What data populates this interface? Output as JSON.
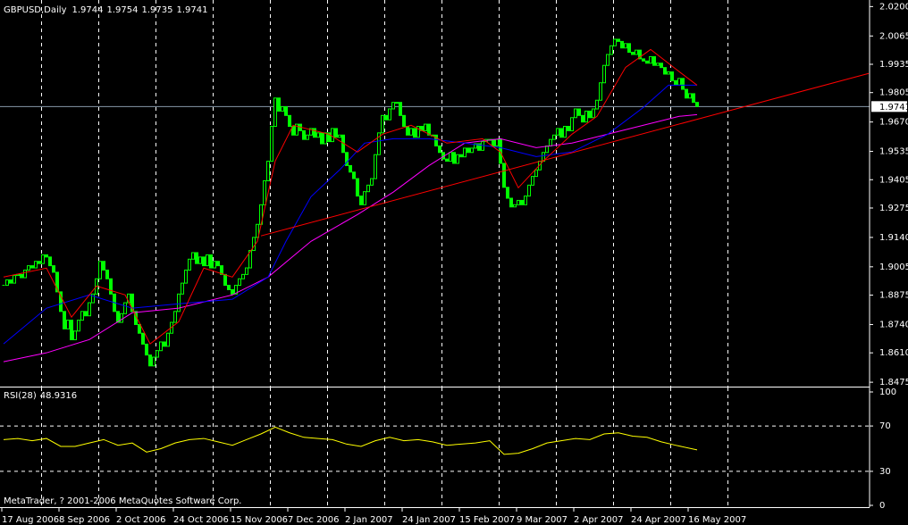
{
  "header": {
    "symbol": "GBPUSD,Daily",
    "ohlc": [
      1.9744,
      1.9754,
      1.9735,
      1.9741
    ]
  },
  "footer": "MetaTrader, ? 2001-2006 MetaQuotes Software Corp.",
  "chart_data": [
    {
      "type": "candlestick",
      "close": [
        1.892,
        1.8945,
        1.893,
        1.8965,
        1.897,
        1.8955,
        1.899,
        1.901,
        1.9,
        1.903,
        1.902,
        1.906,
        1.905,
        1.901,
        1.898,
        1.889,
        1.88,
        1.872,
        1.876,
        1.867,
        1.871,
        1.876,
        1.88,
        1.878,
        1.884,
        1.888,
        1.895,
        1.903,
        1.899,
        1.895,
        1.888,
        1.88,
        1.875,
        1.879,
        1.884,
        1.888,
        1.88,
        1.874,
        1.87,
        1.865,
        1.86,
        1.855,
        1.859,
        1.862,
        1.866,
        1.864,
        1.87,
        1.875,
        1.88,
        1.888,
        1.893,
        1.899,
        1.904,
        1.907,
        1.902,
        1.905,
        1.901,
        1.906,
        1.9,
        1.903,
        1.901,
        1.897,
        1.892,
        1.89,
        1.888,
        1.892,
        1.895,
        1.897,
        1.9,
        1.908,
        1.914,
        1.92,
        1.929,
        1.94,
        1.949,
        1.965,
        1.978,
        1.972,
        1.974,
        1.97,
        1.965,
        1.961,
        1.966,
        1.963,
        1.959,
        1.961,
        1.964,
        1.96,
        1.962,
        1.957,
        1.962,
        1.958,
        1.964,
        1.96,
        1.961,
        1.953,
        1.947,
        1.944,
        1.941,
        1.933,
        1.929,
        1.935,
        1.938,
        1.941,
        1.952,
        1.962,
        1.97,
        1.968,
        1.973,
        1.976,
        1.976,
        1.97,
        1.965,
        1.961,
        1.964,
        1.96,
        1.965,
        1.963,
        1.966,
        1.961,
        1.961,
        1.956,
        1.953,
        1.95,
        1.949,
        1.953,
        1.948,
        1.952,
        1.951,
        1.955,
        1.953,
        1.955,
        1.957,
        1.954,
        1.958,
        1.959,
        1.959,
        1.956,
        1.959,
        1.948,
        1.937,
        1.932,
        1.928,
        1.929,
        1.931,
        1.929,
        1.933,
        1.938,
        1.942,
        1.945,
        1.949,
        1.953,
        1.956,
        1.959,
        1.961,
        1.964,
        1.96,
        1.965,
        1.963,
        1.969,
        1.973,
        1.97,
        1.967,
        1.972,
        1.969,
        1.973,
        1.977,
        1.985,
        1.993,
        1.998,
        2.002,
        2.005,
        2.004,
        2.001,
        2.003,
        1.999,
        1.998,
        2.0,
        1.996,
        1.995,
        1.994,
        1.997,
        1.993,
        1.994,
        1.992,
        1.989,
        1.99,
        1.986,
        1.984,
        1.987,
        1.982,
        1.978,
        1.98,
        1.976,
        1.9741
      ],
      "color": "#00ff00",
      "ylim": [
        1.8459,
        2.0222
      ],
      "yticks": [
        {
          "value": 2.02,
          "label": "2.0200"
        },
        2.0065,
        1.9935,
        1.9805,
        {
          "value": 1.967,
          "label": "1.9670"
        },
        1.9535,
        1.9405,
        1.9275,
        {
          "value": 1.914,
          "label": "1.9140"
        },
        1.9005,
        1.8875,
        {
          "value": 1.874,
          "label": "1.8740"
        },
        {
          "value": 1.861,
          "label": "1.8610"
        },
        1.8475
      ],
      "xticks": [
        {
          "value": 0,
          "label": "17 Aug 2006"
        },
        {
          "value": 16,
          "label": "8 Sep 2006"
        },
        {
          "value": 32,
          "label": "2 Oct 2006"
        },
        {
          "value": 48,
          "label": "24 Oct 2006"
        },
        {
          "value": 64,
          "label": "15 Nov 2006"
        },
        {
          "value": 80,
          "label": "7 Dec 2006"
        },
        {
          "value": 96,
          "label": "2 Jan 2007"
        },
        {
          "value": 112,
          "label": "24 Jan 2007"
        },
        {
          "value": 128,
          "label": "15 Feb 2007"
        },
        {
          "value": 144,
          "label": "9 Mar 2007"
        },
        {
          "value": 160,
          "label": "2 Apr 2007"
        },
        {
          "value": 176,
          "label": "24 Apr 2007"
        },
        {
          "value": 192,
          "label": "16 May 2007"
        }
      ],
      "grid": "vertical",
      "current_price": 1.9741,
      "series": [
        {
          "color": "#ff00ff",
          "x": [
            0,
            12,
            24,
            36,
            49,
            64,
            74,
            86,
            99,
            109,
            119,
            129,
            139,
            149,
            159,
            169,
            179,
            189,
            194
          ],
          "values": [
            1.8569,
            1.861,
            1.8671,
            1.8794,
            1.8815,
            1.8876,
            1.8958,
            1.9122,
            1.9245,
            1.9348,
            1.947,
            1.9573,
            1.9593,
            1.9552,
            1.9573,
            1.9614,
            1.9655,
            1.9696,
            1.9704
          ]
        },
        {
          "color": "#0000ff",
          "x": [
            0,
            12,
            24,
            36,
            49,
            64,
            74,
            79,
            86,
            94,
            101,
            109,
            119,
            129,
            139,
            149,
            159,
            169,
            179,
            186,
            194
          ],
          "values": [
            1.8651,
            1.8815,
            1.8876,
            1.8815,
            1.8835,
            1.8856,
            1.8958,
            1.9122,
            1.9327,
            1.945,
            1.9573,
            1.9593,
            1.9593,
            1.9573,
            1.9552,
            1.9511,
            1.9532,
            1.9614,
            1.9737,
            1.9839,
            1.9839
          ]
        },
        {
          "color": "#ff0000",
          "x": [
            0,
            12,
            19,
            26,
            34,
            41,
            49,
            56,
            64,
            71,
            76,
            81,
            91,
            99,
            106,
            114,
            124,
            134,
            139,
            144,
            151,
            159,
            166,
            174,
            181,
            189,
            194
          ],
          "values": [
            1.8958,
            1.8999,
            1.8774,
            1.8917,
            1.8876,
            1.8651,
            1.8753,
            1.8999,
            1.8958,
            1.9122,
            1.9491,
            1.9655,
            1.9614,
            1.9532,
            1.9614,
            1.9655,
            1.9573,
            1.9593,
            1.9532,
            1.9368,
            1.9491,
            1.9614,
            1.9696,
            1.9921,
            2.0003,
            1.9901,
            1.9839
          ]
        },
        {
          "color": "#ff0000",
          "x": [
            72,
            242
          ],
          "values": [
            1.9147,
            1.9893
          ]
        }
      ]
    },
    {
      "type": "line",
      "name": "RSI(28)",
      "last_value": 48.9316,
      "color": "#ffff00",
      "x": [
        0,
        4,
        8,
        12,
        16,
        20,
        24,
        28,
        32,
        36,
        40,
        44,
        48,
        52,
        56,
        60,
        64,
        68,
        72,
        76,
        80,
        84,
        88,
        92,
        96,
        100,
        104,
        108,
        112,
        116,
        120,
        124,
        128,
        132,
        136,
        140,
        144,
        148,
        152,
        156,
        160,
        164,
        168,
        172,
        176,
        180,
        184,
        188,
        194
      ],
      "values": [
        58,
        59,
        57,
        59,
        52,
        52,
        55,
        58,
        53,
        55,
        47,
        50,
        55,
        58,
        59,
        56,
        53,
        58,
        63,
        69,
        64,
        60,
        59,
        58,
        54,
        52,
        57,
        60,
        57,
        58,
        56,
        53,
        54,
        55,
        57,
        45,
        46,
        50,
        55,
        57,
        59,
        58,
        63,
        64,
        61,
        60,
        56,
        53,
        48.9316
      ],
      "ylim": [
        0,
        100
      ],
      "yticks": [
        100,
        70,
        30,
        0
      ],
      "grid": true
    }
  ]
}
